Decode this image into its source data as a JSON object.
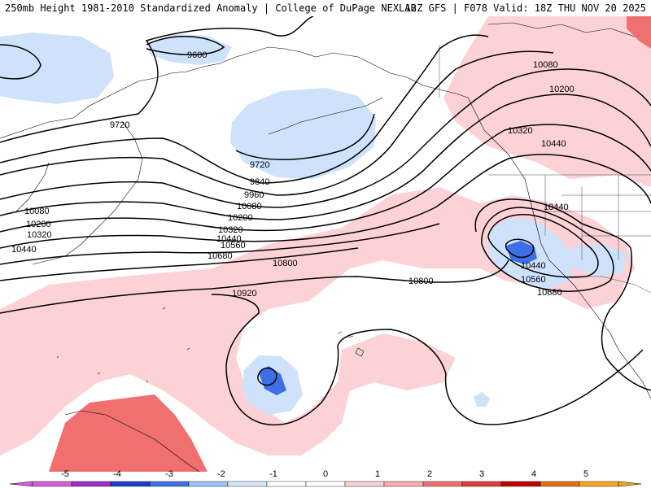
{
  "header": {
    "left_title": "250mb Height 1981-2010 Standardized Anomaly | College of DuPage NEXLAB",
    "right_title": "12Z GFS | F078 Valid: 18Z THU NOV 20 2025"
  },
  "contour_labels": [
    {
      "id": "9600",
      "text": "9600"
    },
    {
      "id": "9720a",
      "text": "9720"
    },
    {
      "id": "9720b",
      "text": "9720"
    },
    {
      "id": "9840",
      "text": "9840"
    },
    {
      "id": "9960",
      "text": "9960"
    },
    {
      "id": "10080a",
      "text": "10080"
    },
    {
      "id": "10080b",
      "text": "10080"
    },
    {
      "id": "10080c",
      "text": "10080"
    },
    {
      "id": "10200a",
      "text": "10200"
    },
    {
      "id": "10200b",
      "text": "10200"
    },
    {
      "id": "10200c",
      "text": "10200"
    },
    {
      "id": "10320a",
      "text": "10320"
    },
    {
      "id": "10320b",
      "text": "10320"
    },
    {
      "id": "10320c",
      "text": "10320"
    },
    {
      "id": "10440a",
      "text": "10440"
    },
    {
      "id": "10440b",
      "text": "10440"
    },
    {
      "id": "10440c",
      "text": "10440"
    },
    {
      "id": "10440d",
      "text": "10440"
    },
    {
      "id": "10440e",
      "text": "10440"
    },
    {
      "id": "10560a",
      "text": "10560"
    },
    {
      "id": "10560b",
      "text": "10560"
    },
    {
      "id": "10680a",
      "text": "10680"
    },
    {
      "id": "10680b",
      "text": "10680"
    },
    {
      "id": "10800a",
      "text": "10800"
    },
    {
      "id": "10800b",
      "text": "10800"
    },
    {
      "id": "10920",
      "text": "10920"
    }
  ],
  "colorbar": {
    "ticks": [
      "-5",
      "-4",
      "-3",
      "-2",
      "-1",
      "0",
      "1",
      "2",
      "3",
      "4",
      "5"
    ],
    "colors": [
      "#d65fd6",
      "#9a2fc9",
      "#1d3fc8",
      "#3f6fe6",
      "#9cc0f5",
      "#d6e7fc",
      "#ffffff",
      "#ffffff",
      "#fbd2d4",
      "#f9aeb0",
      "#f07070",
      "#e33b3b",
      "#c00000",
      "#e0701a",
      "#f5a623"
    ]
  },
  "colors": {
    "neg_light": "#cfe2fb",
    "neg_medium": "#9cc0f5",
    "neg_strong": "#3f6fe6",
    "pos_light": "#fcd2d6",
    "pos_medium": "#f07070",
    "contour": "#000000",
    "coast": "#000000"
  }
}
